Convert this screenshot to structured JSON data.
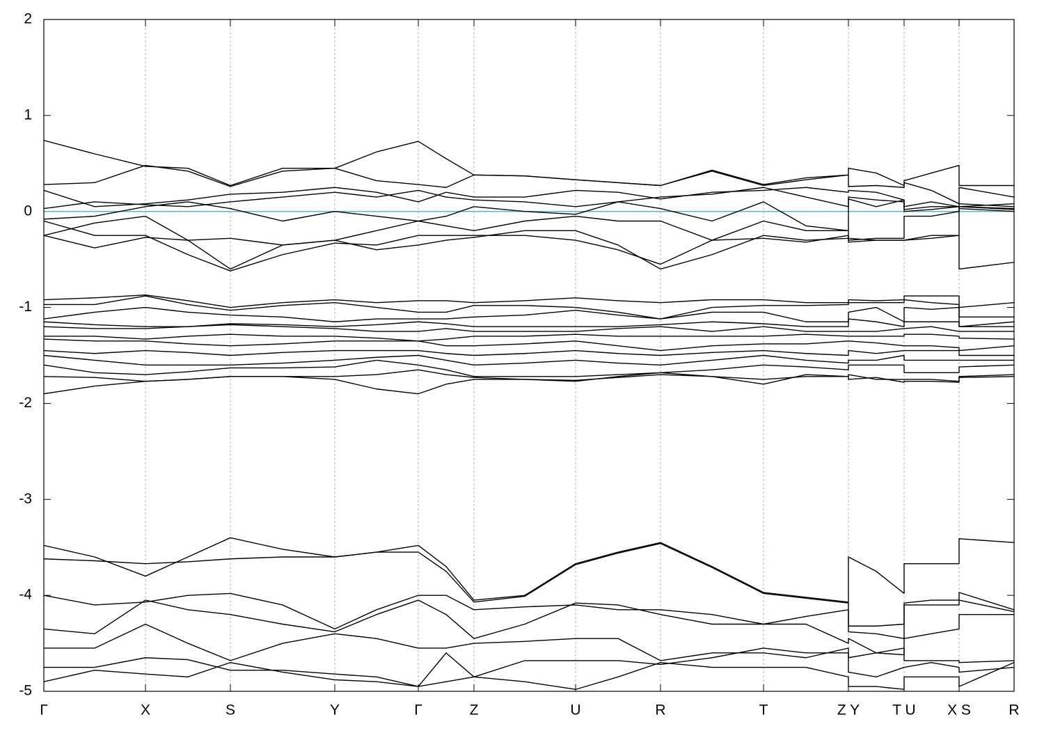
{
  "chart_data": {
    "type": "line",
    "color": "#000000",
    "grid": true,
    "grid_color": "#b0b0b0",
    "reference_line": {
      "y": 0,
      "color": "#5fb3c8"
    },
    "xlim": [
      0,
      1394
    ],
    "ylim": [
      -5,
      2
    ],
    "yticks": [
      -5,
      -4,
      -3,
      -2,
      -1,
      0,
      1,
      2
    ],
    "xticks": [
      {
        "value": 0,
        "label": "Γ"
      },
      {
        "value": 146,
        "label": "X"
      },
      {
        "value": 268,
        "label": "S"
      },
      {
        "value": 418,
        "label": "Y"
      },
      {
        "value": 538,
        "label": "Γ"
      },
      {
        "value": 618,
        "label": "Z"
      },
      {
        "value": 764,
        "label": "U"
      },
      {
        "value": 886,
        "label": "R"
      },
      {
        "value": 1034,
        "label": "T"
      },
      {
        "value": 1156,
        "label": "Z Y"
      },
      {
        "value": 1236,
        "label": "T U"
      },
      {
        "value": 1315,
        "label": "X S"
      },
      {
        "value": 1394,
        "label": "R"
      }
    ],
    "x": [
      0,
      73,
      146,
      207,
      268,
      343,
      418,
      478,
      538,
      578,
      618,
      691,
      764,
      825,
      886,
      960,
      1034,
      1095,
      1156,
      1156,
      1196,
      1236,
      1236,
      1275,
      1315,
      1315,
      1394
    ],
    "series": [
      {
        "values": [
          0.74,
          0.6,
          0.47,
          0.45,
          0.27,
          0.45,
          0.45,
          0.62,
          0.73,
          0.55,
          0.38,
          0.37,
          0.33,
          0.3,
          0.27,
          0.42,
          0.27,
          0.33,
          0.38,
          0.45,
          0.4,
          0.27,
          0.32,
          0.4,
          0.48,
          0.27,
          0.27
        ]
      },
      {
        "values": [
          0.28,
          0.3,
          0.48,
          0.42,
          0.26,
          0.42,
          0.45,
          0.32,
          0.28,
          0.25,
          0.38,
          0.37,
          0.33,
          0.3,
          0.27,
          0.43,
          0.28,
          0.35,
          0.38,
          0.26,
          0.27,
          0.25,
          0.3,
          0.22,
          0.08,
          0.25,
          0.15
        ]
      },
      {
        "values": [
          0.22,
          0.05,
          0.08,
          0.12,
          0.18,
          0.2,
          0.25,
          0.2,
          0.1,
          0.2,
          0.15,
          0.15,
          0.22,
          0.2,
          0.13,
          0.2,
          0.22,
          0.25,
          0.2,
          0.22,
          0.2,
          0.12,
          0.05,
          0.1,
          0.05,
          0.08,
          0.05
        ]
      },
      {
        "values": [
          0.03,
          0.1,
          0.07,
          0.05,
          0.1,
          0.15,
          0.2,
          0.15,
          0.22,
          0.15,
          0.12,
          0.1,
          0.05,
          0.1,
          0.15,
          0.18,
          0.25,
          0.15,
          0.05,
          0.15,
          0.12,
          0.1,
          0.02,
          0.05,
          0.05,
          0.05,
          0.02
        ]
      },
      {
        "values": [
          -0.08,
          -0.05,
          0.05,
          0.1,
          0.03,
          -0.1,
          0.0,
          -0.05,
          -0.1,
          -0.05,
          0.05,
          0.0,
          -0.03,
          0.1,
          0.03,
          -0.1,
          0.1,
          -0.15,
          -0.2,
          0.13,
          0.05,
          0.12,
          0.0,
          0.02,
          0.05,
          0.03,
          0.0
        ]
      },
      {
        "values": [
          -0.25,
          -0.12,
          -0.05,
          -0.3,
          -0.6,
          -0.35,
          -0.3,
          -0.2,
          -0.1,
          -0.15,
          -0.2,
          -0.1,
          -0.05,
          -0.1,
          -0.1,
          -0.3,
          -0.1,
          -0.2,
          -0.2,
          -0.3,
          -0.28,
          -0.28,
          -0.05,
          -0.05,
          0.0,
          0.05,
          0.03
        ]
      },
      {
        "values": [
          -0.1,
          -0.25,
          -0.25,
          -0.45,
          -0.62,
          -0.45,
          -0.33,
          -0.35,
          -0.25,
          -0.25,
          -0.25,
          -0.25,
          -0.3,
          -0.4,
          -0.55,
          -0.3,
          -0.28,
          -0.32,
          -0.25,
          -0.32,
          -0.3,
          -0.3,
          -0.3,
          -0.25,
          -0.25,
          -0.6,
          -0.53
        ]
      },
      {
        "values": [
          -0.25,
          -0.38,
          -0.27,
          -0.3,
          -0.28,
          -0.35,
          -0.3,
          -0.4,
          -0.35,
          -0.3,
          -0.27,
          -0.2,
          -0.2,
          -0.35,
          -0.6,
          -0.45,
          -0.25,
          -0.3,
          -0.28,
          -0.28,
          -0.3,
          -0.3,
          -0.3,
          -0.28,
          -0.25,
          0.05,
          0.08
        ]
      },
      {
        "values": [
          -0.92,
          -0.9,
          -0.87,
          -0.93,
          -1.0,
          -0.95,
          -0.92,
          -0.95,
          -0.93,
          -0.93,
          -0.95,
          -0.93,
          -0.9,
          -0.93,
          -0.95,
          -0.92,
          -0.92,
          -0.95,
          -0.95,
          -0.92,
          -0.93,
          -0.92,
          -0.88,
          -0.88,
          -0.88,
          -1.0,
          -0.95
        ]
      },
      {
        "values": [
          -0.97,
          -0.97,
          -0.88,
          -0.97,
          -1.03,
          -0.98,
          -0.95,
          -1.0,
          -1.05,
          -1.05,
          -0.98,
          -0.98,
          -1.0,
          -1.05,
          -1.12,
          -1.0,
          -0.98,
          -0.98,
          -0.97,
          -0.95,
          -0.95,
          -0.95,
          -0.92,
          -0.95,
          -0.97,
          -1.1,
          -1.1
        ]
      },
      {
        "values": [
          -1.12,
          -1.05,
          -1.0,
          -1.05,
          -1.08,
          -1.1,
          -1.15,
          -1.12,
          -1.12,
          -1.12,
          -1.1,
          -1.08,
          -1.03,
          -1.08,
          -1.12,
          -1.05,
          -1.05,
          -1.15,
          -1.15,
          -1.05,
          -1.0,
          -1.15,
          -1.0,
          -1.02,
          -1.0,
          -1.2,
          -1.15
        ]
      },
      {
        "values": [
          -1.15,
          -1.18,
          -1.2,
          -1.2,
          -1.17,
          -1.18,
          -1.2,
          -1.18,
          -1.15,
          -1.17,
          -1.2,
          -1.2,
          -1.2,
          -1.2,
          -1.18,
          -1.15,
          -1.17,
          -1.2,
          -1.2,
          -1.12,
          -1.15,
          -1.2,
          -1.15,
          -1.15,
          -1.15,
          -1.2,
          -1.2
        ]
      },
      {
        "values": [
          -1.2,
          -1.22,
          -1.22,
          -1.2,
          -1.18,
          -1.2,
          -1.22,
          -1.25,
          -1.25,
          -1.22,
          -1.25,
          -1.25,
          -1.25,
          -1.22,
          -1.2,
          -1.25,
          -1.2,
          -1.25,
          -1.25,
          -1.25,
          -1.25,
          -1.22,
          -1.22,
          -1.2,
          -1.25,
          -1.25,
          -1.25
        ]
      },
      {
        "values": [
          -1.3,
          -1.3,
          -1.33,
          -1.3,
          -1.28,
          -1.3,
          -1.3,
          -1.32,
          -1.35,
          -1.33,
          -1.3,
          -1.3,
          -1.28,
          -1.3,
          -1.3,
          -1.3,
          -1.3,
          -1.28,
          -1.3,
          -1.3,
          -1.3,
          -1.3,
          -1.28,
          -1.28,
          -1.3,
          -1.32,
          -1.33
        ]
      },
      {
        "values": [
          -1.33,
          -1.35,
          -1.35,
          -1.38,
          -1.4,
          -1.38,
          -1.35,
          -1.35,
          -1.35,
          -1.4,
          -1.4,
          -1.38,
          -1.35,
          -1.4,
          -1.45,
          -1.4,
          -1.38,
          -1.38,
          -1.35,
          -1.35,
          -1.37,
          -1.4,
          -1.4,
          -1.4,
          -1.42,
          -1.45,
          -1.4
        ]
      },
      {
        "values": [
          -1.45,
          -1.48,
          -1.45,
          -1.47,
          -1.5,
          -1.47,
          -1.45,
          -1.45,
          -1.45,
          -1.48,
          -1.5,
          -1.48,
          -1.45,
          -1.48,
          -1.5,
          -1.47,
          -1.45,
          -1.48,
          -1.5,
          -1.45,
          -1.48,
          -1.45,
          -1.45,
          -1.45,
          -1.45,
          -1.5,
          -1.5
        ]
      },
      {
        "values": [
          -1.5,
          -1.55,
          -1.6,
          -1.6,
          -1.6,
          -1.58,
          -1.55,
          -1.52,
          -1.5,
          -1.55,
          -1.6,
          -1.58,
          -1.55,
          -1.58,
          -1.6,
          -1.55,
          -1.5,
          -1.55,
          -1.58,
          -1.55,
          -1.55,
          -1.5,
          -1.55,
          -1.55,
          -1.55,
          -1.55,
          -1.55
        ]
      },
      {
        "values": [
          -1.6,
          -1.68,
          -1.7,
          -1.67,
          -1.63,
          -1.63,
          -1.62,
          -1.55,
          -1.6,
          -1.65,
          -1.72,
          -1.72,
          -1.72,
          -1.7,
          -1.68,
          -1.65,
          -1.6,
          -1.62,
          -1.65,
          -1.6,
          -1.6,
          -1.6,
          -1.68,
          -1.68,
          -1.68,
          -1.62,
          -1.6
        ]
      },
      {
        "values": [
          -1.72,
          -1.73,
          -1.77,
          -1.75,
          -1.72,
          -1.72,
          -1.72,
          -1.7,
          -1.65,
          -1.7,
          -1.73,
          -1.75,
          -1.76,
          -1.73,
          -1.7,
          -1.72,
          -1.75,
          -1.72,
          -1.72,
          -1.7,
          -1.75,
          -1.75,
          -1.75,
          -1.75,
          -1.77,
          -1.72,
          -1.7
        ]
      },
      {
        "values": [
          -1.9,
          -1.82,
          -1.77,
          -1.75,
          -1.72,
          -1.72,
          -1.75,
          -1.85,
          -1.9,
          -1.8,
          -1.75,
          -1.75,
          -1.77,
          -1.72,
          -1.68,
          -1.72,
          -1.8,
          -1.7,
          -1.72,
          -1.75,
          -1.73,
          -1.78,
          -1.77,
          -1.77,
          -1.78,
          -1.73,
          -1.72
        ]
      },
      {
        "values": [
          -3.48,
          -3.6,
          -3.8,
          -3.6,
          -3.4,
          -3.52,
          -3.6,
          -3.55,
          -3.48,
          -3.7,
          -4.05,
          -4.0,
          -3.67,
          -3.55,
          -3.45,
          -3.7,
          -3.97,
          -4.02,
          -4.07,
          -3.6,
          -3.75,
          -3.98,
          -3.67,
          -3.67,
          -3.67,
          -3.41,
          -3.45
        ]
      },
      {
        "values": [
          -3.62,
          -3.64,
          -3.67,
          -3.65,
          -3.62,
          -3.6,
          -3.6,
          -3.55,
          -3.55,
          -3.75,
          -4.07,
          -4.01,
          -3.68,
          -3.56,
          -3.46,
          -3.71,
          -3.98,
          -4.03,
          -4.08,
          -4.32,
          -4.32,
          -4.3,
          -4.08,
          -4.05,
          -4.05,
          -3.97,
          -4.15
        ]
      },
      {
        "values": [
          -4.0,
          -4.1,
          -4.07,
          -4.0,
          -3.98,
          -4.1,
          -4.35,
          -4.15,
          -4.0,
          -4.0,
          -4.15,
          -4.12,
          -4.1,
          -4.15,
          -4.15,
          -4.2,
          -4.3,
          -4.22,
          -4.15,
          -4.38,
          -4.4,
          -4.45,
          -4.1,
          -4.1,
          -4.1,
          -4.05,
          -4.17
        ]
      },
      {
        "values": [
          -4.35,
          -4.4,
          -4.05,
          -4.15,
          -4.2,
          -4.3,
          -4.38,
          -4.2,
          -4.05,
          -4.2,
          -4.45,
          -4.3,
          -4.08,
          -4.1,
          -4.2,
          -4.3,
          -4.3,
          -4.3,
          -4.5,
          -4.45,
          -4.6,
          -4.62,
          -4.45,
          -4.4,
          -4.35,
          -4.2,
          -4.2
        ]
      },
      {
        "values": [
          -4.55,
          -4.55,
          -4.3,
          -4.5,
          -4.68,
          -4.5,
          -4.4,
          -4.45,
          -4.55,
          -4.55,
          -4.5,
          -4.48,
          -4.45,
          -4.45,
          -4.68,
          -4.6,
          -4.6,
          -4.65,
          -4.55,
          -4.65,
          -4.6,
          -4.55,
          -4.68,
          -4.68,
          -4.68,
          -4.7,
          -4.68
        ]
      },
      {
        "values": [
          -4.75,
          -4.75,
          -4.65,
          -4.67,
          -4.78,
          -4.78,
          -4.82,
          -4.85,
          -4.95,
          -4.9,
          -4.85,
          -4.68,
          -4.68,
          -4.68,
          -4.72,
          -4.65,
          -4.55,
          -4.6,
          -4.6,
          -4.8,
          -4.85,
          -4.75,
          -4.75,
          -4.7,
          -4.75,
          -4.8,
          -4.75
        ]
      },
      {
        "values": [
          -4.9,
          -4.78,
          -4.82,
          -4.85,
          -4.7,
          -4.8,
          -4.88,
          -4.9,
          -4.95,
          -4.6,
          -4.85,
          -4.9,
          -4.98,
          -4.85,
          -4.7,
          -4.75,
          -4.75,
          -4.75,
          -4.85,
          -4.95,
          -4.95,
          -4.98,
          -4.85,
          -4.85,
          -4.85,
          -4.95,
          -4.7
        ]
      }
    ]
  }
}
